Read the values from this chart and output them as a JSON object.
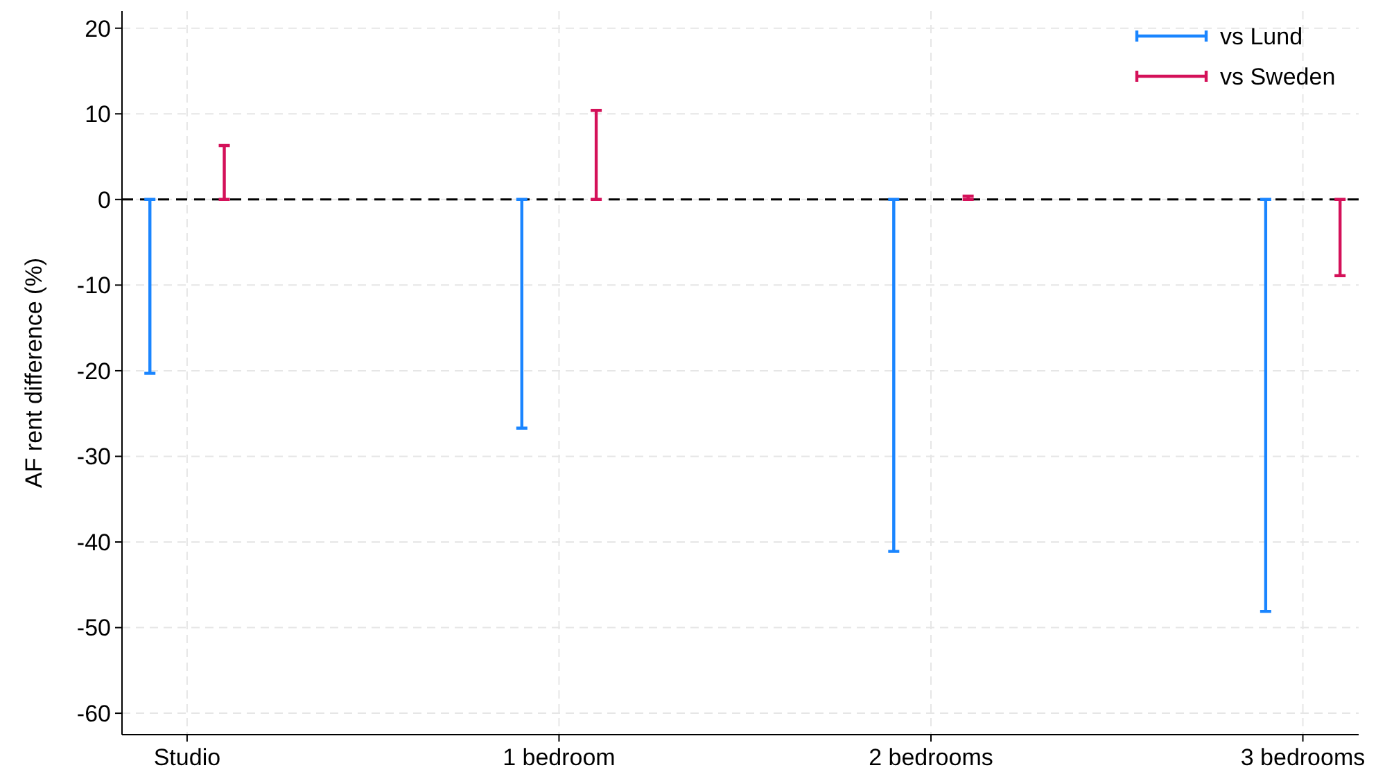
{
  "chart_data": {
    "type": "bar",
    "ylabel": "AF rent difference (%)",
    "categories": [
      "Studio",
      "1 bedroom",
      "2 bedrooms",
      "3 bedrooms"
    ],
    "series": [
      {
        "name": "vs Lund",
        "color": "#1a85ff",
        "values": [
          -20.3,
          -26.7,
          -41.1,
          -48.1
        ]
      },
      {
        "name": "vs Sweden",
        "color": "#d41159",
        "values": [
          6.3,
          10.4,
          0.4,
          -8.9
        ]
      }
    ],
    "ylim": [
      -62.5,
      22
    ],
    "yticks": [
      -60,
      -50,
      -40,
      -30,
      -20,
      -10,
      0,
      10,
      20
    ],
    "ref_lines": [
      {
        "axis": "y",
        "value": 0,
        "color": "#000000",
        "line_style": "dashed"
      }
    ],
    "grid": true,
    "legend": "top right"
  }
}
